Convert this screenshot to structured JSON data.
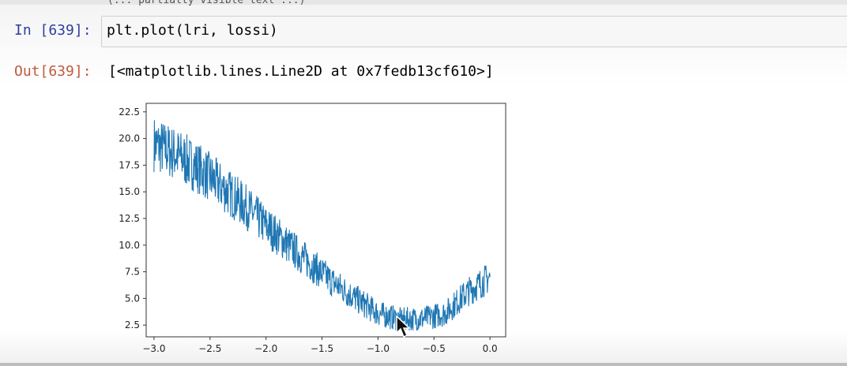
{
  "previous_output_fragment": "(... partially visible text ...)",
  "cell": {
    "in_prompt": "In [639]:",
    "code": "plt.plot(lri, lossi)",
    "out_prompt": "Out[639]:",
    "output_text": "[<matplotlib.lines.Line2D at 0x7fedb13cf610>]"
  },
  "chart_data": {
    "type": "line",
    "title": "",
    "xlabel": "",
    "ylabel": "",
    "xlim": [
      -3.07,
      0.14
    ],
    "ylim": [
      1.4,
      23.3
    ],
    "x_ticks": [
      -3.0,
      -2.5,
      -2.0,
      -1.5,
      -1.0,
      -0.5,
      0.0
    ],
    "x_tick_labels": [
      "−3.0",
      "−2.5",
      "−2.0",
      "−1.5",
      "−1.0",
      "−0.5",
      "0.0"
    ],
    "y_ticks": [
      2.5,
      5.0,
      7.5,
      10.0,
      12.5,
      15.0,
      17.5,
      20.0,
      22.5
    ],
    "y_tick_labels": [
      "2.5",
      "5.0",
      "7.5",
      "10.0",
      "12.5",
      "15.0",
      "17.5",
      "20.0",
      "22.5"
    ],
    "grid": false,
    "color": "#1f77b4",
    "series": [
      {
        "x": [
          -3.0,
          -2.8,
          -2.6,
          -2.4,
          -2.2,
          -2.0,
          -1.8,
          -1.6,
          -1.4,
          -1.2,
          -1.0,
          -0.8,
          -0.6,
          -0.4,
          -0.2,
          0.0
        ],
        "y": [
          19.5,
          18.5,
          17.2,
          15.5,
          13.8,
          11.8,
          10.0,
          8.2,
          6.5,
          5.0,
          3.6,
          3.0,
          3.1,
          3.6,
          5.6,
          7.0
        ]
      }
    ]
  }
}
